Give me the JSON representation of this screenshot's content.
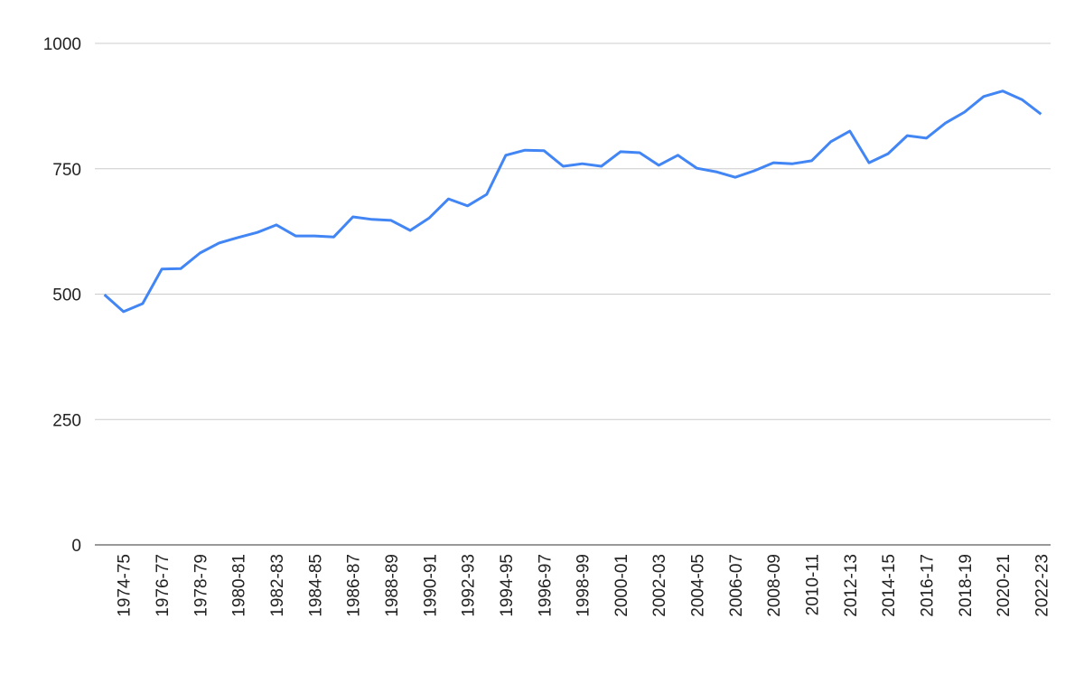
{
  "chart_data": {
    "type": "line",
    "categories": [
      null,
      "1974-75",
      null,
      "1976-77",
      null,
      "1978-79",
      null,
      "1980-81",
      null,
      "1982-83",
      null,
      "1984-85",
      null,
      "1986-87",
      null,
      "1988-89",
      null,
      "1990-91",
      null,
      "1992-93",
      null,
      "1994-95",
      null,
      "1996-97",
      null,
      "1998-99",
      null,
      "2000-01",
      null,
      "2002-03",
      null,
      "2004-05",
      null,
      "2006-07",
      null,
      "2008-09",
      null,
      "2010-11",
      null,
      "2012-13",
      null,
      "2014-15",
      null,
      "2016-17",
      null,
      "2018-19",
      null,
      "2020-21",
      null,
      "2022-23"
    ],
    "series": [
      {
        "color": "#4285f4",
        "values": [
          499,
          465,
          481,
          550,
          551,
          582,
          602,
          613,
          623,
          638,
          616,
          616,
          614,
          654,
          649,
          647,
          627,
          652,
          690,
          676,
          699,
          777,
          787,
          786,
          755,
          760,
          755,
          784,
          782,
          757,
          777,
          751,
          744,
          733,
          746,
          762,
          760,
          766,
          804,
          825,
          762,
          780,
          816,
          811,
          841,
          863,
          894,
          905,
          888,
          859
        ]
      }
    ],
    "ylim": [
      0,
      1000
    ],
    "yticks": [
      0,
      250,
      500,
      750,
      1000
    ],
    "grid": true
  }
}
